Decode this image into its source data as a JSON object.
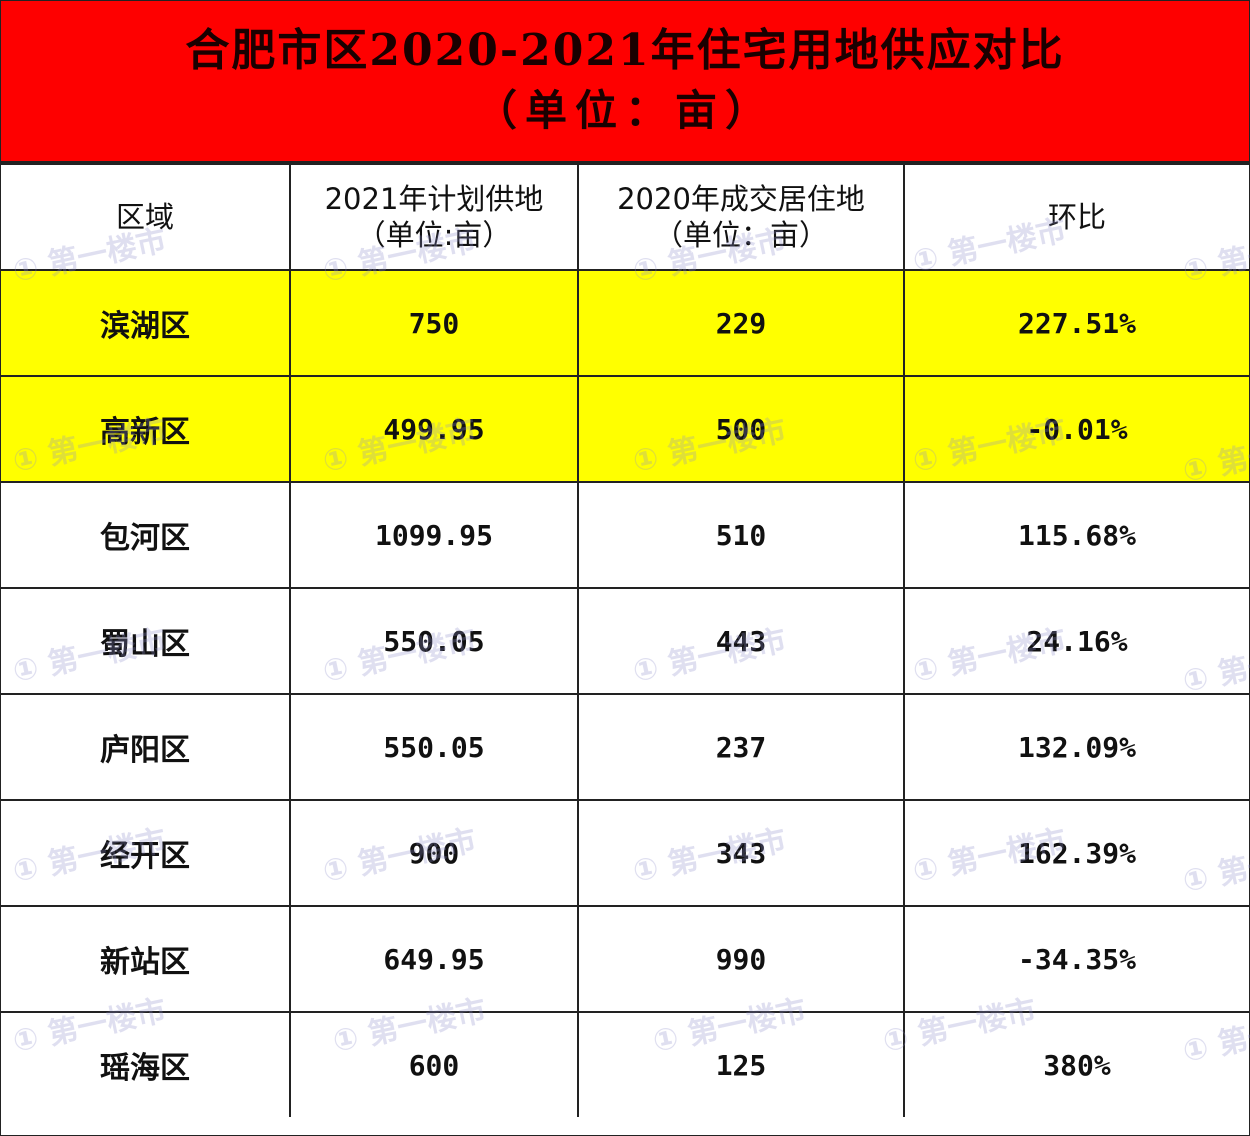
{
  "title": {
    "line1": "合肥市区2020-2021年住宅用地供应对比",
    "line2": "（单位：亩）"
  },
  "colors": {
    "title_bg": "#fe0000",
    "highlight_row": "#ffff00"
  },
  "watermark": "第一楼市",
  "table": {
    "headers": [
      {
        "line1": "区域",
        "line2": ""
      },
      {
        "line1": "2021年计划供地",
        "line2": "（单位:亩）"
      },
      {
        "line1": "2020年成交居住地",
        "line2": "（单位：亩）"
      },
      {
        "line1": "环比",
        "line2": ""
      }
    ],
    "rows": [
      {
        "district": "滨湖区",
        "plan_2021": "750",
        "deal_2020": "229",
        "change": "227.51%",
        "highlight": true
      },
      {
        "district": "高新区",
        "plan_2021": "499.95",
        "deal_2020": "500",
        "change": "-0.01%",
        "highlight": true
      },
      {
        "district": "包河区",
        "plan_2021": "1099.95",
        "deal_2020": "510",
        "change": "115.68%",
        "highlight": false
      },
      {
        "district": "蜀山区",
        "plan_2021": "550.05",
        "deal_2020": "443",
        "change": "24.16%",
        "highlight": false
      },
      {
        "district": "庐阳区",
        "plan_2021": "550.05",
        "deal_2020": "237",
        "change": "132.09%",
        "highlight": false
      },
      {
        "district": "经开区",
        "plan_2021": "900",
        "deal_2020": "343",
        "change": "162.39%",
        "highlight": false
      },
      {
        "district": "新站区",
        "plan_2021": "649.95",
        "deal_2020": "990",
        "change": "-34.35%",
        "highlight": false
      },
      {
        "district": "瑶海区",
        "plan_2021": "600",
        "deal_2020": "125",
        "change": "380%",
        "highlight": false
      }
    ]
  }
}
